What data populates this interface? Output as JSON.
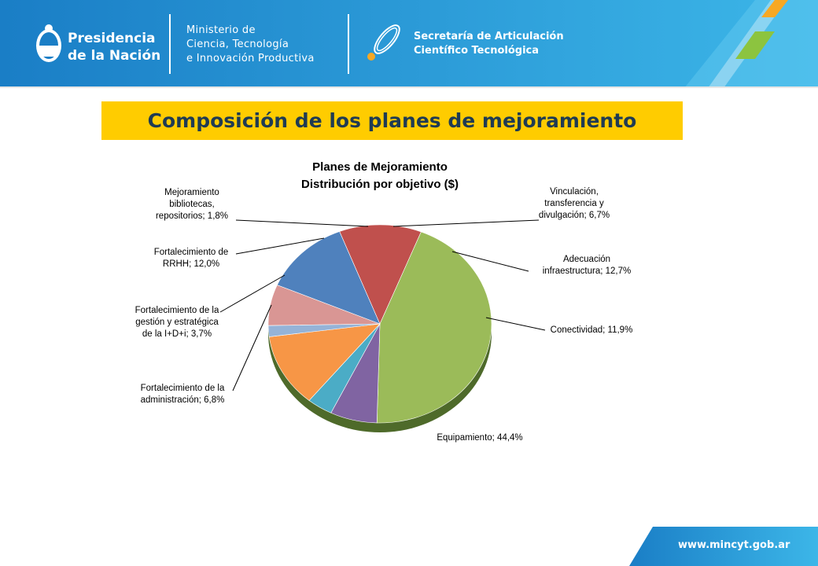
{
  "header": {
    "presidencia_line1": "Presidencia",
    "presidencia_line2": "de la Nación",
    "ministerio_line1": "Ministerio de",
    "ministerio_line2": "Ciencia, Tecnología",
    "ministerio_line3": "e Innovación Productiva",
    "secretaria_line1": "Secretaría de Articulación",
    "secretaria_line2": "Científico Tecnológica",
    "colors": {
      "bar": "#1f8ed3",
      "accent_orange": "#f7a823",
      "accent_green": "#8cc43f"
    }
  },
  "slide": {
    "title": "Composición de los planes de mejoramiento"
  },
  "footer": {
    "url": "www.mincyt.gob.ar"
  },
  "chart_data": {
    "type": "pie",
    "title_line1": "Planes de Mejoramiento",
    "title_line2": "Distribución por objetivo ($)",
    "slices": [
      {
        "label_lines": [
          "Vinculación,",
          "transferencia y",
          "divulgación; 6,7%"
        ],
        "value": 6.7,
        "color": "#d99694"
      },
      {
        "label_lines": [
          "Adecuación",
          "infraestructura; 12,7%"
        ],
        "value": 12.7,
        "color": "#4f81bd"
      },
      {
        "label_lines": [
          "Conectividad; 11,9%"
        ],
        "value": 11.9,
        "color": "#c0504d"
      },
      {
        "label_lines": [
          "Equipamiento; 44,4%"
        ],
        "value": 44.4,
        "color": "#9bbb59"
      },
      {
        "label_lines": [
          "Fortalecimiento de la",
          "administración; 6,8%"
        ],
        "value": 6.8,
        "color": "#8064a2"
      },
      {
        "label_lines": [
          "Fortalecimiento de la",
          "gestión y estratégica",
          "de la I+D+i; 3,7%"
        ],
        "value": 3.7,
        "color": "#4bacc6"
      },
      {
        "label_lines": [
          "Fortalecimiento de",
          "RRHH; 12,0%"
        ],
        "value": 12.0,
        "color": "#f79646"
      },
      {
        "label_lines": [
          "Mejoramiento",
          "bibliotecas,",
          "repositorios; 1,8%"
        ],
        "value": 1.8,
        "color": "#95b3d7"
      }
    ]
  }
}
